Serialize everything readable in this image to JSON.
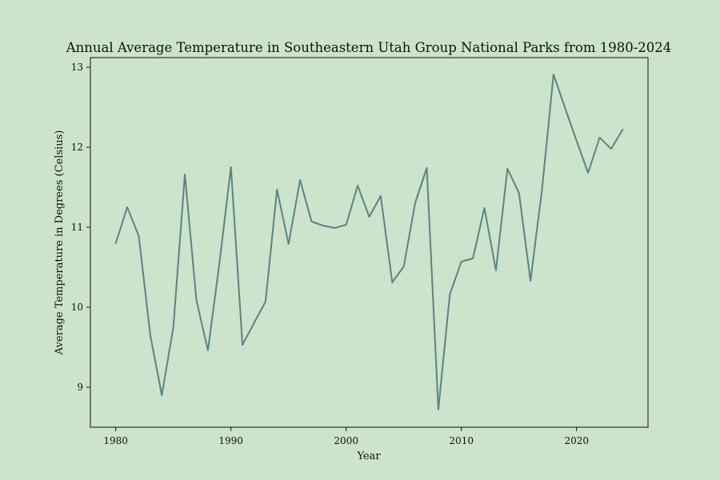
{
  "chart_data": {
    "type": "line",
    "title": "Annual Average Temperature in Southeastern Utah Group National Parks from 1980-2024",
    "xlabel": "Year",
    "ylabel": "Average Temperature in Degrees (Celsius)",
    "xlim": [
      1977.8,
      2026.2
    ],
    "ylim": [
      8.5,
      13.12
    ],
    "xticks": [
      1980,
      1990,
      2000,
      2010,
      2020
    ],
    "yticks": [
      9,
      10,
      11,
      12,
      13
    ],
    "grid": false,
    "line_color": "#5a8486",
    "background_color": "#cbe4cb",
    "series": [
      {
        "x": [
          1980,
          1981,
          1982,
          1983,
          1984,
          1985,
          1986,
          1987,
          1988,
          1989,
          1990,
          1991,
          1992,
          1993,
          1994,
          1995,
          1996,
          1997,
          1998,
          1999,
          2000,
          2001,
          2002,
          2003,
          2004,
          2005,
          2006,
          2007,
          2008,
          2009,
          2010,
          2011,
          2012,
          2013,
          2014,
          2015,
          2016,
          2017,
          2018,
          2019,
          2020,
          2021,
          2022,
          2023,
          2024
        ],
        "values": [
          10.8,
          11.25,
          10.89,
          9.65,
          8.9,
          9.75,
          11.66,
          10.09,
          9.46,
          10.55,
          11.75,
          9.53,
          9.8,
          10.07,
          11.47,
          10.79,
          11.59,
          11.07,
          11.02,
          10.99,
          11.03,
          11.52,
          11.13,
          11.39,
          10.31,
          10.51,
          11.31,
          11.74,
          8.72,
          10.16,
          10.57,
          10.61,
          11.24,
          10.46,
          11.73,
          11.43,
          10.33,
          11.47,
          12.91,
          12.49,
          12.08,
          11.68,
          12.12,
          11.98,
          12.22
        ]
      }
    ]
  }
}
